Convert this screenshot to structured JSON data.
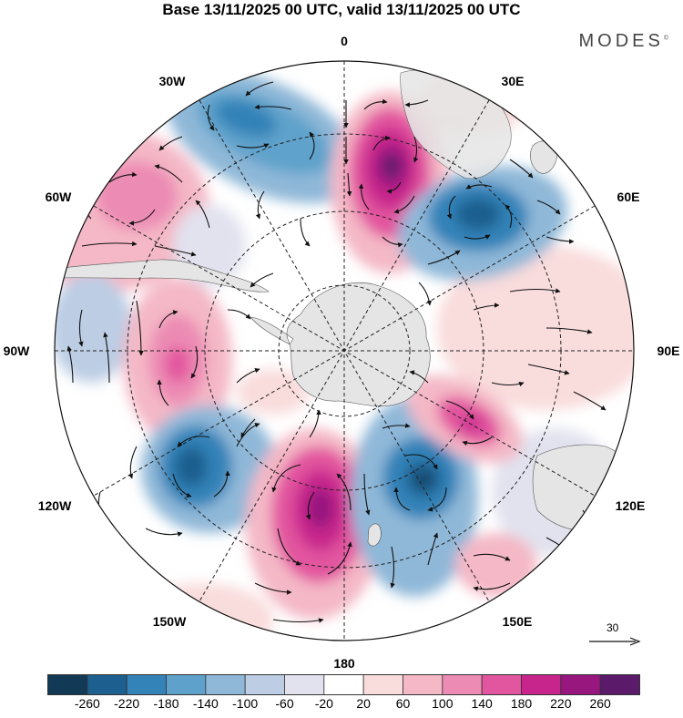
{
  "title": "Base 13/11/2025 00 UTC, valid 13/11/2025 00 UTC",
  "brand": "MODES",
  "brand_mark": "©",
  "longitude_labels": {
    "lon_0": "0",
    "lon_30e": "30E",
    "lon_60e": "60E",
    "lon_90e": "90E",
    "lon_120e": "120E",
    "lon_150e": "150E",
    "lon_180": "180",
    "lon_150w": "150W",
    "lon_120w": "120W",
    "lon_90w": "90W",
    "lon_60w": "60W",
    "lon_30w": "30W"
  },
  "reference_vector": {
    "value": "30"
  },
  "colorbar": {
    "colors": [
      "#123a57",
      "#1d5f8e",
      "#3382b8",
      "#5ea2cb",
      "#8fb8d8",
      "#bccde4",
      "#e1e2ee",
      "#ffffff",
      "#f9dcdc",
      "#f4b8c6",
      "#ec8bb4",
      "#e2559f",
      "#c8258c",
      "#97177f",
      "#5c1a6a"
    ],
    "tick_labels": [
      "-260",
      "-220",
      "-180",
      "-140",
      "-100",
      "-60",
      "-20",
      "20",
      "60",
      "100",
      "140",
      "180",
      "220",
      "260"
    ]
  },
  "colors": {
    "land": "#e5e5e5",
    "coastline": "#555555",
    "grid": "#222222",
    "vector": "#111111"
  }
}
